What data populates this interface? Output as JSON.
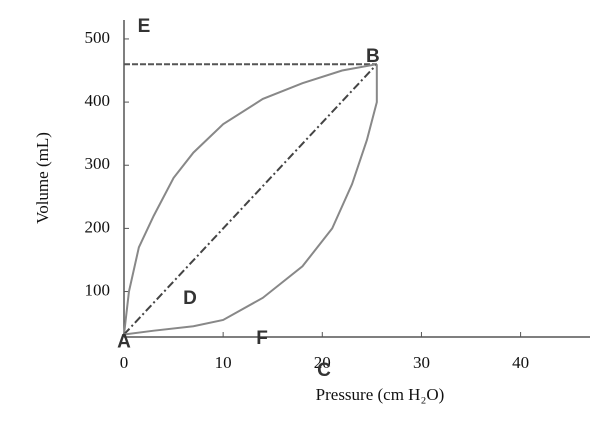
{
  "chart_data": {
    "type": "line",
    "xlabel": "Pressure (cm H₂O)",
    "ylabel": "Volume (mL)",
    "xlim": [
      0,
      47
    ],
    "ylim": [
      28,
      530
    ],
    "xticks": [
      0,
      10,
      20,
      30,
      40
    ],
    "yticks": [
      100,
      200,
      300,
      400,
      500
    ],
    "annotations": [
      "A",
      "B"
    ],
    "series": [
      {
        "name": "E",
        "color": "#555555",
        "dash": "dashed",
        "x": [
          0,
          25.5
        ],
        "values": [
          460,
          460
        ]
      },
      {
        "name": "D",
        "color": "#888888",
        "dash": "solid",
        "x": [
          0,
          0.5,
          1.5,
          3,
          5,
          7,
          10,
          14,
          18,
          22,
          25.5
        ],
        "values": [
          32,
          100,
          170,
          220,
          280,
          320,
          365,
          405,
          430,
          450,
          460
        ]
      },
      {
        "name": "F",
        "color": "#444444",
        "dash": "dashdot",
        "x": [
          0,
          25.5
        ],
        "values": [
          32,
          460
        ]
      },
      {
        "name": "C",
        "color": "#888888",
        "dash": "solid",
        "x": [
          0,
          3,
          7,
          10,
          14,
          18,
          21,
          23,
          24.5,
          25.5,
          25.5
        ],
        "values": [
          32,
          38,
          45,
          55,
          90,
          140,
          200,
          270,
          340,
          400,
          460
        ]
      }
    ]
  }
}
